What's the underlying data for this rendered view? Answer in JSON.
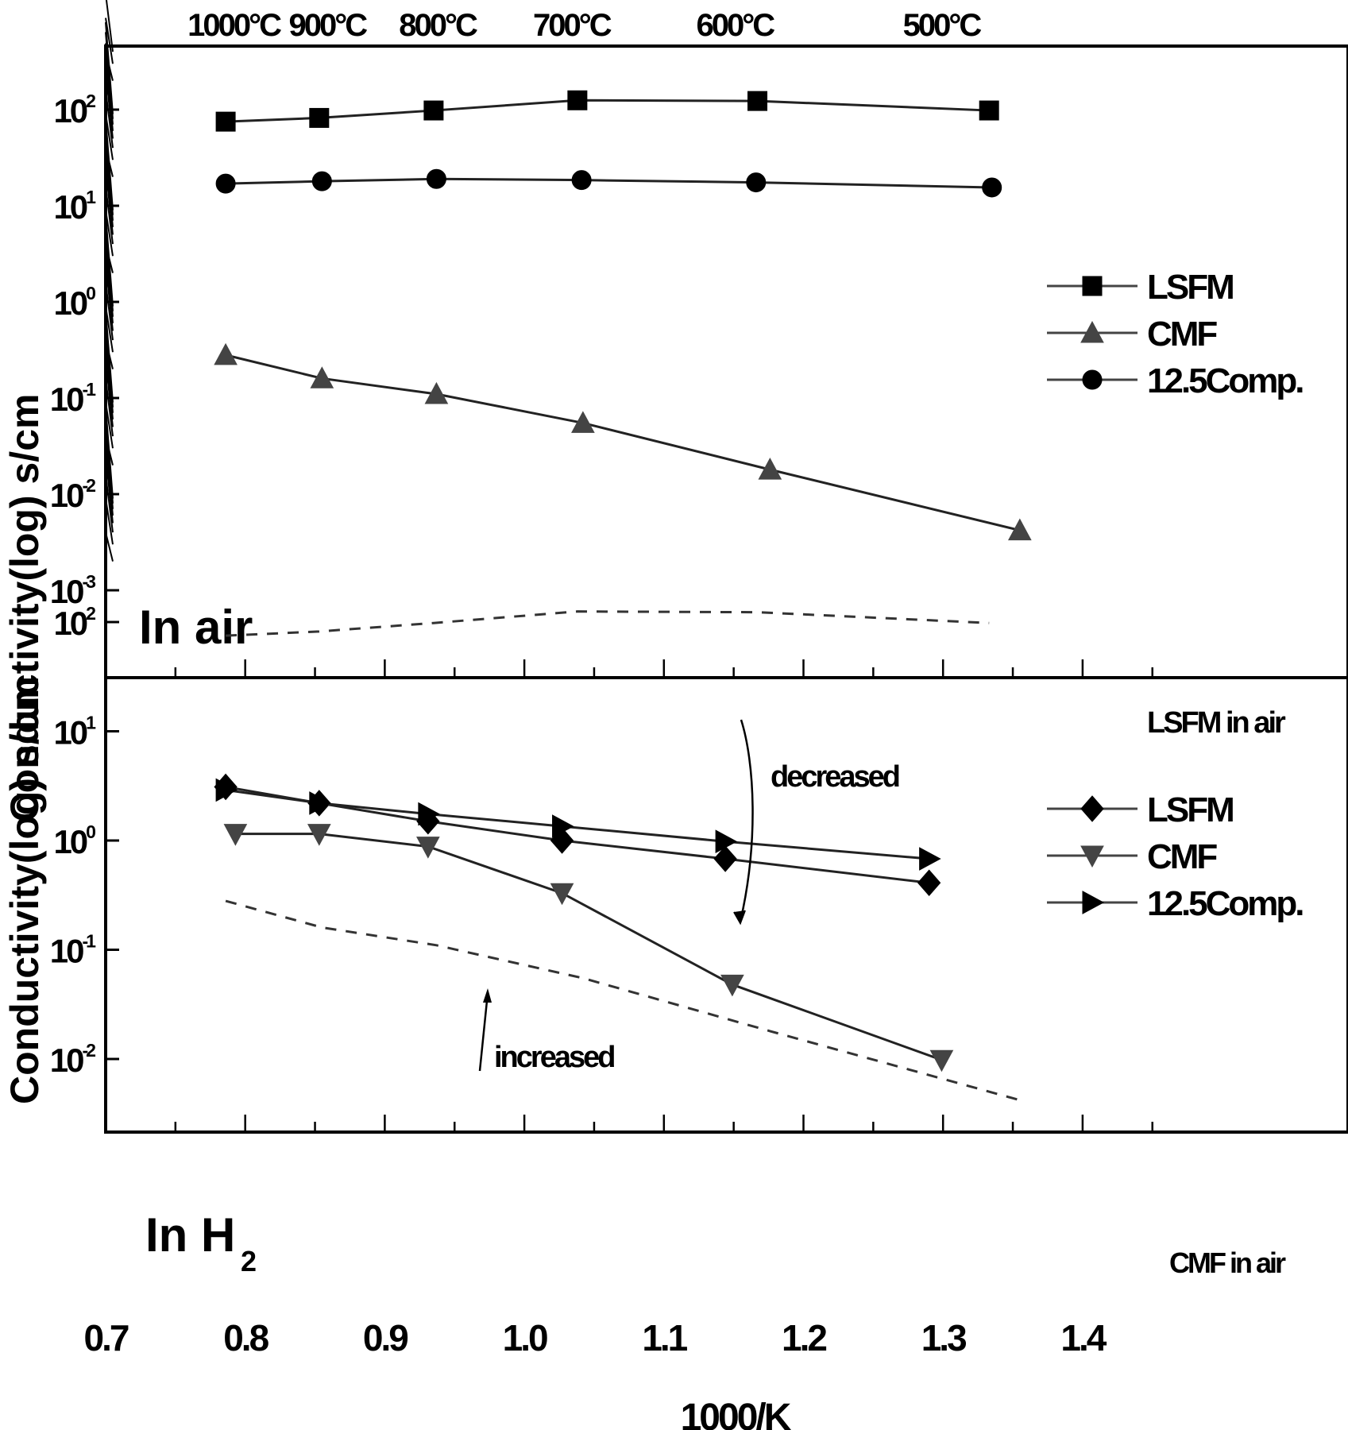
{
  "figure": {
    "top_axis_labels": [
      {
        "text": "1000°C",
        "x": 0.786
      },
      {
        "text": "900°C",
        "x": 0.853
      },
      {
        "text": "800°C",
        "x": 0.932
      },
      {
        "text": "700°C",
        "x": 1.028
      },
      {
        "text": "600°C",
        "x": 1.145
      },
      {
        "text": "500°C",
        "x": 1.293
      }
    ],
    "ylabel": "Conductivity(log) s/cm",
    "xlabel": "1000/K",
    "xticks": [
      "0.7",
      "0.8",
      "0.9",
      "1.0",
      "1.1",
      "1.2",
      "1.3",
      "1.4"
    ],
    "top_panel": {
      "label": "In air",
      "yticks": [
        "10^2",
        "10^1",
        "10^0",
        "10^-1",
        "10^-2",
        "10^-3"
      ],
      "legend": [
        "LSFM",
        "CMF",
        "12.5Comp."
      ]
    },
    "bottom_panel": {
      "label": "In H",
      "label_sub": "2",
      "yticks": [
        "10^2",
        "10^1",
        "10^0",
        "10^-1",
        "10^-2"
      ],
      "legend": [
        "LSFM",
        "CMF",
        "12.5Comp."
      ],
      "annotations": {
        "lsfm_air": "LSFM in air",
        "cmf_air": "CMF in air",
        "decreased": "decreased",
        "increased": "increased"
      }
    }
  },
  "chart_data": [
    {
      "type": "line",
      "title": "In air",
      "xlabel": "1000/K",
      "ylabel": "Conductivity(log) s/cm",
      "yscale": "log",
      "xlim": [
        0.7,
        1.47
      ],
      "ylim": [
        0.001,
        300
      ],
      "top_axis": [
        "1000°C",
        "900°C",
        "800°C",
        "700°C",
        "600°C",
        "500°C"
      ],
      "legend_position": "right",
      "series": [
        {
          "name": "LSFM",
          "marker": "square",
          "x": [
            0.786,
            0.853,
            0.935,
            1.038,
            1.167,
            1.333
          ],
          "y": [
            75,
            82,
            98,
            125,
            123,
            98
          ]
        },
        {
          "name": "CMF",
          "marker": "triangle-up",
          "x": [
            0.786,
            0.855,
            0.937,
            1.042,
            1.176,
            1.355
          ],
          "y": [
            0.28,
            0.16,
            0.11,
            0.055,
            0.018,
            0.0042
          ]
        },
        {
          "name": "12.5Comp.",
          "marker": "circle",
          "x": [
            0.786,
            0.855,
            0.937,
            1.041,
            1.166,
            1.335
          ],
          "y": [
            17,
            18,
            19,
            18.5,
            17.5,
            15.5
          ]
        }
      ]
    },
    {
      "type": "line",
      "title": "In H2",
      "xlabel": "1000/K",
      "ylabel": "Conductivity(log) s/cm",
      "yscale": "log",
      "xlim": [
        0.7,
        1.47
      ],
      "ylim": [
        0.002,
        150
      ],
      "legend_position": "right",
      "series": [
        {
          "name": "LSFM",
          "marker": "diamond",
          "x": [
            0.786,
            0.853,
            0.931,
            1.027,
            1.144,
            1.29
          ],
          "y": [
            3.1,
            2.2,
            1.5,
            1.0,
            0.68,
            0.41
          ]
        },
        {
          "name": "CMF",
          "marker": "triangle-down",
          "x": [
            0.793,
            0.853,
            0.931,
            1.027,
            1.149,
            1.299
          ],
          "y": [
            1.15,
            1.15,
            0.88,
            0.33,
            0.048,
            0.0098
          ]
        },
        {
          "name": "12.5Comp.",
          "marker": "triangle-right",
          "x": [
            0.786,
            0.853,
            0.931,
            1.027,
            1.144,
            1.29
          ],
          "y": [
            2.9,
            2.2,
            1.75,
            1.35,
            0.98,
            0.68
          ]
        },
        {
          "name": "LSFM in air",
          "style": "dashed",
          "x": [
            0.786,
            0.853,
            0.935,
            1.038,
            1.167,
            1.333
          ],
          "y": [
            75,
            82,
            98,
            125,
            123,
            98
          ]
        },
        {
          "name": "CMF in air",
          "style": "dashed",
          "x": [
            0.786,
            0.855,
            0.937,
            1.042,
            1.176,
            1.355
          ],
          "y": [
            0.28,
            0.16,
            0.11,
            0.055,
            0.018,
            0.0042
          ]
        }
      ],
      "annotations": [
        "LSFM in air",
        "CMF in air",
        "decreased",
        "increased"
      ]
    }
  ]
}
